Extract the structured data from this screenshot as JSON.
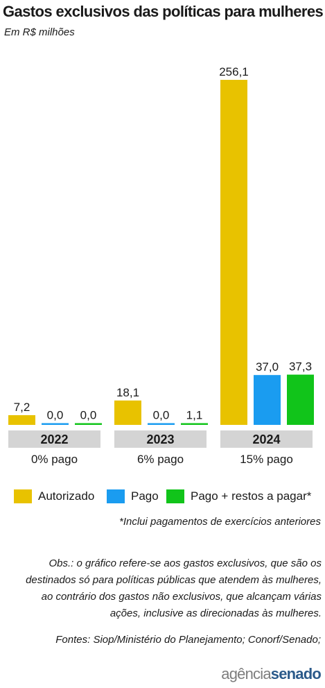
{
  "title": "Gastos exclusivos das políticas para mulheres",
  "subtitle": "Em R$ milhões",
  "colors": {
    "autorizado": "#e8c200",
    "pago": "#1a9cf0",
    "pago_restos": "#11c41a",
    "year_band": "#d4d4d4",
    "text": "#1a1a1a"
  },
  "chart_data": {
    "type": "bar",
    "title": "Gastos exclusivos das políticas para mulheres",
    "categories": [
      "2022",
      "2023",
      "2024"
    ],
    "category_notes": [
      "0% pago",
      "6% pago",
      "15% pago"
    ],
    "series": [
      {
        "name": "Autorizado",
        "values": [
          7.2,
          18.1,
          256.1
        ],
        "labels": [
          "7,2",
          "18,1",
          "256,1"
        ]
      },
      {
        "name": "Pago",
        "values": [
          0.0,
          0.0,
          37.0
        ],
        "labels": [
          "0,0",
          "0,0",
          "37,0"
        ]
      },
      {
        "name": "Pago + restos a pagar*",
        "values": [
          0.0,
          1.1,
          37.3
        ],
        "labels": [
          "0,0",
          "1,1",
          "37,3"
        ]
      }
    ],
    "ylabel": "Em R$ milhões",
    "ylim": [
      0,
      256.1
    ],
    "grid": false,
    "legend": "bottom"
  },
  "legend": {
    "items": [
      {
        "label": "Autorizado",
        "color": "#e8c200"
      },
      {
        "label": "Pago",
        "color": "#1a9cf0"
      },
      {
        "label": "Pago + restos a pagar*",
        "color": "#11c41a"
      }
    ]
  },
  "footnote": "*Inclui pagamentos de exercícios anteriores",
  "obs": {
    "lines": [
      "Obs.: o gráfico refere-se aos gastos exclusivos, que são os",
      "destinados só para políticas públicas que atendem às mulheres,",
      "ao contrário dos gastos não exclusivos, que alcançam várias",
      "ações, inclusive as direcionadas às mulheres."
    ]
  },
  "sources": "Fontes: Siop/Ministério do Planejamento; Conorf/Senado;",
  "logo": {
    "part1": "agência",
    "part2": "senado"
  }
}
